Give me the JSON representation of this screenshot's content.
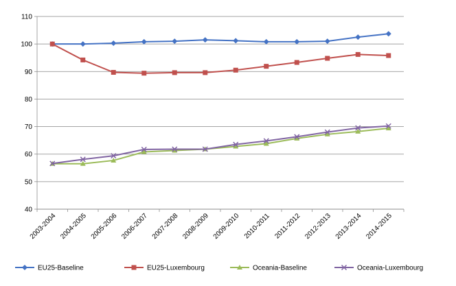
{
  "chart_data": {
    "type": "line",
    "title": "",
    "xlabel": "",
    "ylabel": "",
    "categories": [
      "2003-2004",
      "2004-2005",
      "2005-2006",
      "2006-2007",
      "2007-2008",
      "2008-2009",
      "2009-2010",
      "2010-2011",
      "2011-2012",
      "2012-2013",
      "2013-2014",
      "2014-2015"
    ],
    "ylim": [
      40,
      110
    ],
    "yticks": [
      40,
      50,
      60,
      70,
      80,
      90,
      100,
      110
    ],
    "grid": "horizontal",
    "legend_position": "bottom",
    "series": [
      {
        "name": "EU25-Baseline",
        "color": "#4472c4",
        "marker": "diamond",
        "values": [
          100.0,
          100.0,
          100.3,
          100.8,
          101.0,
          101.5,
          101.2,
          100.8,
          100.8,
          101.0,
          102.5,
          103.7
        ]
      },
      {
        "name": "EU25-Luxembourg",
        "color": "#c0504d",
        "marker": "square",
        "values": [
          100.0,
          94.2,
          89.7,
          89.4,
          89.6,
          89.6,
          90.5,
          91.9,
          93.3,
          94.8,
          96.2,
          95.8
        ]
      },
      {
        "name": "Oceania-Baseline",
        "color": "#9bbb59",
        "marker": "triangle",
        "values": [
          56.5,
          56.5,
          57.7,
          60.8,
          61.3,
          61.8,
          62.8,
          63.8,
          65.7,
          67.2,
          68.2,
          69.4
        ]
      },
      {
        "name": "Oceania-Luxembourg",
        "color": "#8064a2",
        "marker": "x",
        "values": [
          56.6,
          58.1,
          59.4,
          61.7,
          61.8,
          61.8,
          63.5,
          64.8,
          66.3,
          68.0,
          69.5,
          70.2
        ]
      }
    ]
  }
}
